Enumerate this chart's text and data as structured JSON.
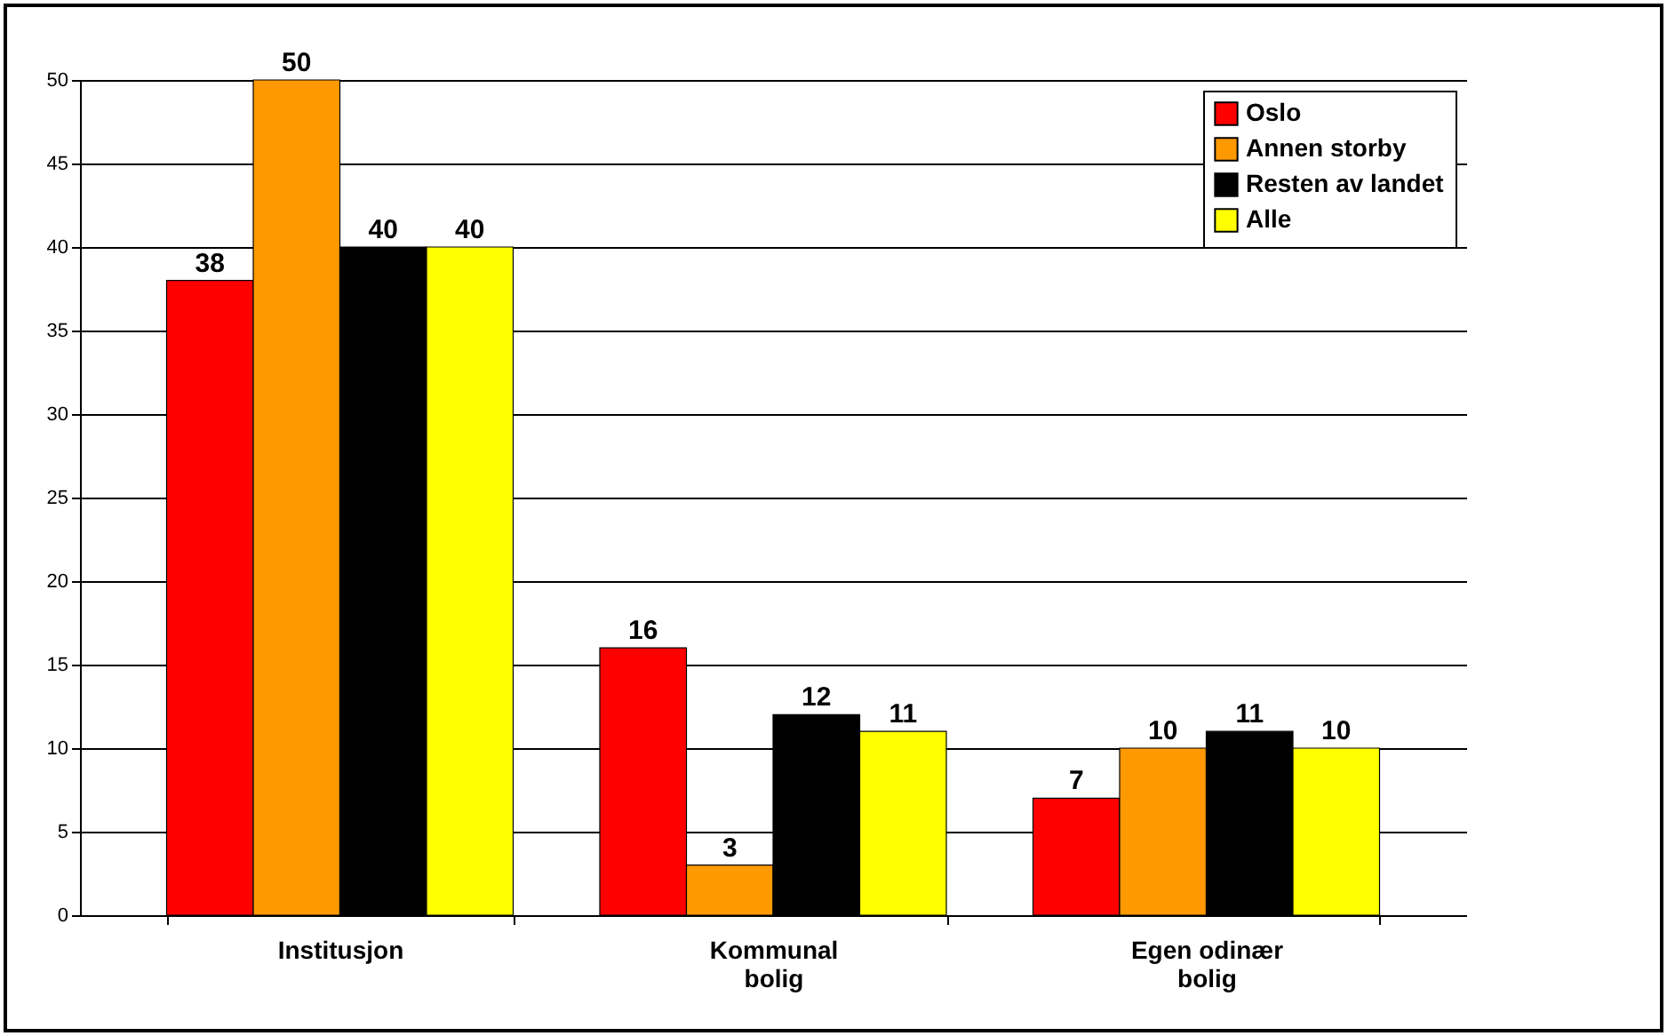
{
  "chart_data": {
    "type": "bar",
    "categories": [
      "Institusjon",
      "Kommunal bolig",
      "Egen odinær bolig"
    ],
    "series": [
      {
        "name": "Oslo",
        "color": "#ff0000",
        "values": [
          38,
          16,
          7
        ]
      },
      {
        "name": "Annen storby",
        "color": "#ff9900",
        "values": [
          50,
          3,
          10
        ]
      },
      {
        "name": "Resten av landet",
        "color": "#000000",
        "values": [
          40,
          12,
          11
        ]
      },
      {
        "name": "Alle",
        "color": "#ffff00",
        "values": [
          40,
          11,
          10
        ]
      }
    ],
    "ylim": [
      0,
      50
    ],
    "yticks": [
      0,
      5,
      10,
      15,
      20,
      25,
      30,
      35,
      40,
      45,
      50
    ],
    "grid": "y",
    "legend": "top right",
    "data_labels": true
  }
}
